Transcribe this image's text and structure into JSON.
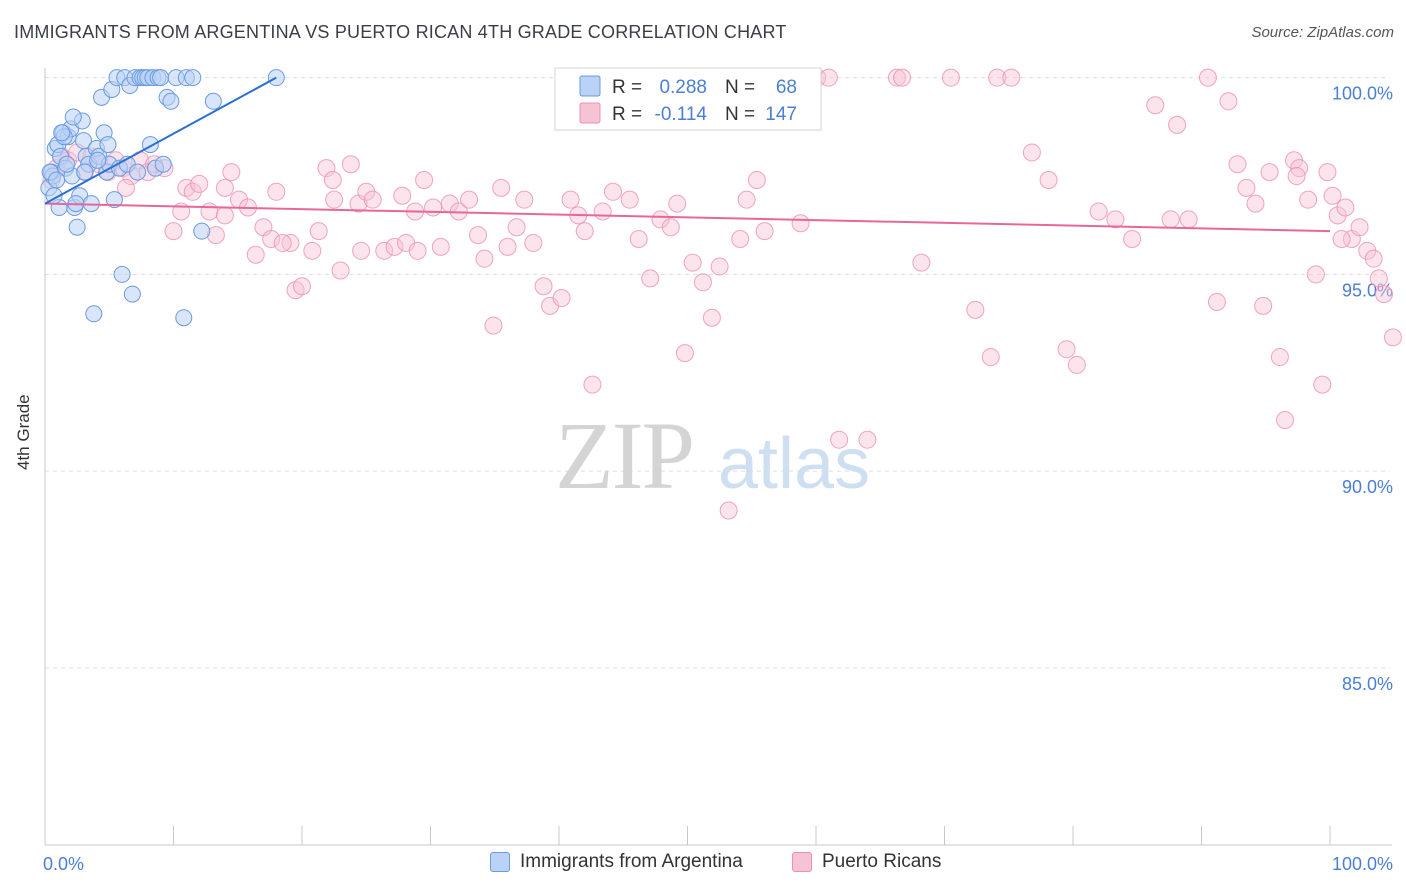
{
  "title": "IMMIGRANTS FROM ARGENTINA VS PUERTO RICAN 4TH GRADE CORRELATION CHART",
  "source": "Source: ZipAtlas.com",
  "watermark": {
    "zip": "ZIP",
    "atlas": "atlas"
  },
  "colors": {
    "blue_fill": "#b9d2f5",
    "blue_stroke": "#6a9be0",
    "blue_line": "#2b6fd1",
    "pink_fill": "#f6c3d4",
    "pink_stroke": "#ee8fb0",
    "pink_line": "#e8679a",
    "tick_label": "#4a7fd4",
    "grid": "#dddddd"
  },
  "legend_box": {
    "r_label": "R =",
    "n_label": "N =",
    "rows": [
      {
        "r": "0.288",
        "n": "68",
        "color": "blue"
      },
      {
        "r": "-0.114",
        "n": "147",
        "color": "pink"
      }
    ]
  },
  "legend_bottom": [
    {
      "label": "Immigrants from Argentina",
      "color": "blue"
    },
    {
      "label": "Puerto Ricans",
      "color": "pink"
    }
  ],
  "chart_data": {
    "type": "scatter",
    "title": "IMMIGRANTS FROM ARGENTINA VS PUERTO RICAN 4TH GRADE CORRELATION CHART",
    "xlabel": "",
    "ylabel": "4th Grade",
    "xlim": [
      0,
      100
    ],
    "ylim": [
      80.5,
      100.5
    ],
    "x_tick_labels": [
      "0.0%",
      "100.0%"
    ],
    "y_ticks": [
      85,
      90,
      95,
      100
    ],
    "y_tick_labels": [
      "85.0%",
      "90.0%",
      "95.0%",
      "100.0%"
    ],
    "grid": true,
    "legend_position": "top-center",
    "series": [
      {
        "name": "Immigrants from Argentina",
        "color": "blue",
        "R": 0.288,
        "N": 68,
        "trend": {
          "x": [
            0,
            18
          ],
          "y": [
            96.8,
            100.0
          ]
        },
        "points": [
          [
            0.3,
            97.2
          ],
          [
            0.5,
            97.6
          ],
          [
            0.6,
            97.5
          ],
          [
            0.8,
            98.2
          ],
          [
            1.0,
            98.3
          ],
          [
            1.2,
            98.0
          ],
          [
            1.4,
            98.6
          ],
          [
            1.6,
            97.7
          ],
          [
            1.8,
            98.5
          ],
          [
            2.0,
            98.7
          ],
          [
            2.1,
            97.5
          ],
          [
            2.3,
            96.7
          ],
          [
            2.5,
            96.2
          ],
          [
            2.7,
            97.0
          ],
          [
            2.9,
            98.9
          ],
          [
            3.0,
            98.4
          ],
          [
            3.2,
            98.0
          ],
          [
            3.4,
            97.8
          ],
          [
            3.6,
            96.8
          ],
          [
            3.8,
            94.0
          ],
          [
            4.0,
            98.2
          ],
          [
            4.2,
            98.0
          ],
          [
            4.4,
            99.5
          ],
          [
            4.6,
            98.6
          ],
          [
            4.8,
            97.6
          ],
          [
            5.0,
            97.8
          ],
          [
            5.2,
            99.7
          ],
          [
            5.4,
            96.9
          ],
          [
            5.6,
            100.0
          ],
          [
            5.8,
            97.7
          ],
          [
            6.0,
            95.0
          ],
          [
            6.2,
            100.0
          ],
          [
            6.4,
            97.8
          ],
          [
            6.6,
            99.8
          ],
          [
            6.8,
            94.5
          ],
          [
            7.0,
            100.0
          ],
          [
            7.2,
            97.6
          ],
          [
            7.4,
            100.0
          ],
          [
            7.6,
            100.0
          ],
          [
            7.8,
            100.0
          ],
          [
            8.0,
            100.0
          ],
          [
            8.2,
            98.3
          ],
          [
            8.4,
            100.0
          ],
          [
            8.6,
            97.7
          ],
          [
            8.8,
            100.0
          ],
          [
            9.0,
            100.0
          ],
          [
            9.2,
            97.8
          ],
          [
            9.5,
            99.5
          ],
          [
            9.8,
            99.4
          ],
          [
            10.2,
            100.0
          ],
          [
            10.8,
            93.9
          ],
          [
            11.0,
            100.0
          ],
          [
            11.5,
            100.0
          ],
          [
            12.2,
            96.1
          ],
          [
            13.1,
            99.4
          ],
          [
            18.0,
            100.0
          ],
          [
            0.4,
            97.6
          ],
          [
            0.9,
            97.4
          ],
          [
            1.5,
            98.5
          ],
          [
            2.2,
            99.0
          ],
          [
            3.1,
            97.6
          ],
          [
            4.1,
            97.9
          ],
          [
            4.9,
            98.3
          ],
          [
            1.1,
            96.7
          ],
          [
            0.7,
            97.0
          ],
          [
            1.3,
            98.6
          ],
          [
            1.7,
            97.8
          ],
          [
            2.4,
            96.8
          ]
        ]
      },
      {
        "name": "Puerto Ricans",
        "color": "pink",
        "R": -0.114,
        "N": 147,
        "trend": {
          "x": [
            0,
            100
          ],
          "y": [
            96.8,
            96.1
          ]
        },
        "points": [
          [
            0.5,
            97.4
          ],
          [
            0.9,
            97.7
          ],
          [
            1.3,
            98.0
          ],
          [
            1.8,
            97.9
          ],
          [
            2.5,
            98.1
          ],
          [
            3.1,
            97.6
          ],
          [
            3.6,
            98.0
          ],
          [
            4.2,
            97.8
          ],
          [
            4.9,
            97.6
          ],
          [
            5.5,
            97.9
          ],
          [
            6.1,
            97.7
          ],
          [
            6.7,
            97.5
          ],
          [
            7.4,
            97.9
          ],
          [
            8.0,
            97.6
          ],
          [
            8.5,
            97.8
          ],
          [
            9.3,
            97.7
          ],
          [
            10.0,
            96.1
          ],
          [
            11.0,
            97.2
          ],
          [
            11.5,
            97.1
          ],
          [
            12.0,
            97.3
          ],
          [
            12.8,
            96.6
          ],
          [
            13.3,
            96.0
          ],
          [
            14.0,
            97.2
          ],
          [
            14.5,
            97.6
          ],
          [
            15.1,
            96.9
          ],
          [
            15.8,
            96.7
          ],
          [
            16.4,
            95.5
          ],
          [
            17.0,
            96.2
          ],
          [
            17.6,
            95.9
          ],
          [
            18.0,
            97.1
          ],
          [
            19.1,
            95.8
          ],
          [
            19.5,
            94.6
          ],
          [
            20.0,
            94.7
          ],
          [
            20.8,
            95.6
          ],
          [
            21.3,
            96.1
          ],
          [
            21.9,
            97.7
          ],
          [
            22.5,
            96.9
          ],
          [
            23.0,
            95.1
          ],
          [
            23.8,
            97.8
          ],
          [
            24.4,
            96.8
          ],
          [
            25.0,
            97.1
          ],
          [
            25.5,
            96.9
          ],
          [
            26.4,
            95.6
          ],
          [
            27.2,
            95.7
          ],
          [
            27.8,
            97.0
          ],
          [
            28.1,
            95.8
          ],
          [
            28.8,
            96.6
          ],
          [
            29.5,
            97.4
          ],
          [
            30.2,
            96.7
          ],
          [
            30.8,
            95.7
          ],
          [
            31.5,
            96.8
          ],
          [
            32.2,
            96.6
          ],
          [
            33.0,
            96.9
          ],
          [
            33.7,
            96.0
          ],
          [
            34.2,
            95.4
          ],
          [
            34.9,
            93.7
          ],
          [
            35.5,
            97.2
          ],
          [
            36.0,
            95.7
          ],
          [
            36.7,
            96.2
          ],
          [
            37.3,
            96.9
          ],
          [
            38.0,
            95.8
          ],
          [
            38.8,
            94.7
          ],
          [
            39.3,
            94.2
          ],
          [
            40.2,
            94.4
          ],
          [
            40.9,
            96.9
          ],
          [
            41.5,
            96.5
          ],
          [
            42.0,
            96.1
          ],
          [
            42.6,
            92.2
          ],
          [
            43.4,
            96.6
          ],
          [
            44.2,
            97.1
          ],
          [
            44.9,
            99.4
          ],
          [
            45.5,
            96.9
          ],
          [
            46.2,
            95.9
          ],
          [
            47.1,
            94.9
          ],
          [
            47.9,
            96.4
          ],
          [
            48.7,
            96.2
          ],
          [
            49.2,
            96.8
          ],
          [
            49.8,
            93.0
          ],
          [
            50.4,
            95.3
          ],
          [
            51.2,
            94.8
          ],
          [
            51.9,
            93.9
          ],
          [
            52.5,
            95.2
          ],
          [
            53.2,
            89.0
          ],
          [
            54.1,
            95.9
          ],
          [
            54.6,
            96.9
          ],
          [
            55.4,
            97.4
          ],
          [
            56.0,
            96.1
          ],
          [
            57.2,
            100.0
          ],
          [
            58.8,
            96.3
          ],
          [
            60.1,
            100.0
          ],
          [
            61.0,
            100.0
          ],
          [
            61.8,
            90.8
          ],
          [
            64.0,
            90.8
          ],
          [
            66.3,
            100.0
          ],
          [
            66.7,
            100.0
          ],
          [
            68.2,
            95.3
          ],
          [
            70.5,
            100.0
          ],
          [
            72.4,
            94.1
          ],
          [
            73.6,
            92.9
          ],
          [
            74.1,
            100.0
          ],
          [
            75.2,
            100.0
          ],
          [
            76.8,
            98.1
          ],
          [
            78.1,
            97.4
          ],
          [
            79.5,
            93.1
          ],
          [
            80.3,
            92.7
          ],
          [
            82.0,
            96.6
          ],
          [
            83.3,
            96.4
          ],
          [
            84.6,
            95.9
          ],
          [
            86.4,
            99.3
          ],
          [
            88.1,
            98.8
          ],
          [
            89.0,
            96.4
          ],
          [
            90.5,
            100.0
          ],
          [
            91.2,
            94.3
          ],
          [
            92.1,
            99.4
          ],
          [
            93.5,
            97.2
          ],
          [
            94.2,
            96.8
          ],
          [
            94.8,
            94.2
          ],
          [
            95.3,
            97.6
          ],
          [
            96.1,
            92.9
          ],
          [
            96.5,
            91.3
          ],
          [
            97.2,
            97.9
          ],
          [
            97.6,
            97.7
          ],
          [
            98.3,
            96.9
          ],
          [
            98.9,
            95.0
          ],
          [
            99.4,
            92.2
          ],
          [
            99.8,
            97.6
          ],
          [
            100.2,
            97.0
          ],
          [
            100.6,
            96.5
          ],
          [
            101.2,
            96.7
          ],
          [
            101.7,
            95.9
          ],
          [
            102.3,
            96.2
          ],
          [
            102.9,
            95.6
          ],
          [
            103.4,
            95.4
          ],
          [
            103.8,
            94.9
          ],
          [
            104.2,
            94.5
          ],
          [
            104.9,
            93.4
          ],
          [
            100.9,
            95.9
          ],
          [
            97.4,
            97.5
          ],
          [
            92.8,
            97.8
          ],
          [
            87.6,
            96.4
          ],
          [
            29.0,
            95.6
          ],
          [
            24.6,
            95.6
          ],
          [
            18.5,
            95.8
          ],
          [
            6.3,
            97.2
          ],
          [
            10.6,
            96.6
          ],
          [
            14.0,
            96.5
          ],
          [
            22.4,
            97.4
          ]
        ]
      }
    ]
  }
}
